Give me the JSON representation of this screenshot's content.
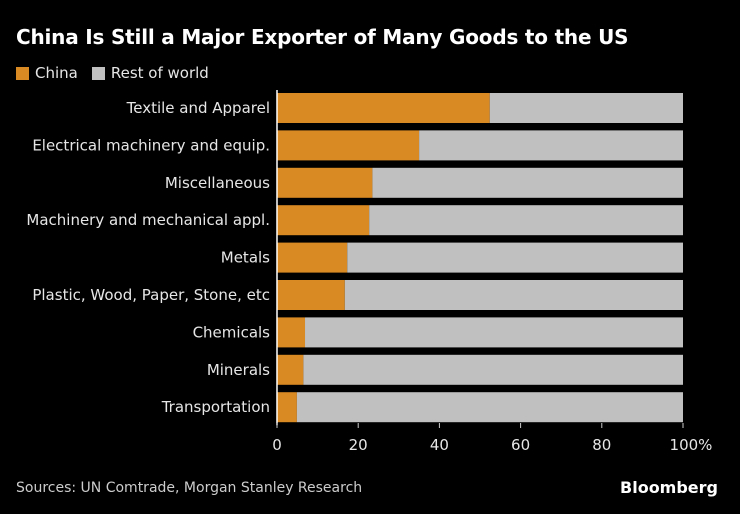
{
  "chart_data": {
    "type": "bar",
    "orientation": "horizontal",
    "stacked": true,
    "title": "China Is Still a Major Exporter of Many Goods to the US",
    "categories": [
      "Textile and Apparel",
      "Electrical machinery and equip.",
      "Miscellaneous",
      "Machinery and mechanical appl.",
      "Metals",
      "Plastic, Wood, Paper, Stone, etc",
      "Chemicals",
      "Minerals",
      "Transportation"
    ],
    "series": [
      {
        "name": "China",
        "color": "#d98a22",
        "values": [
          52.4,
          35.0,
          23.5,
          22.7,
          17.3,
          16.7,
          6.9,
          6.5,
          4.9
        ]
      },
      {
        "name": "Rest of world",
        "color": "#c0c0c0",
        "values": [
          47.6,
          65.0,
          76.5,
          77.3,
          82.7,
          83.3,
          93.1,
          93.5,
          95.1
        ]
      }
    ],
    "xlim": [
      0,
      100
    ],
    "xticks": [
      "0",
      "20",
      "40",
      "60",
      "80",
      "100%"
    ],
    "legend": "top-left",
    "grid": false,
    "source": "Sources: UN Comtrade, Morgan Stanley Research",
    "brand": "Bloomberg"
  }
}
